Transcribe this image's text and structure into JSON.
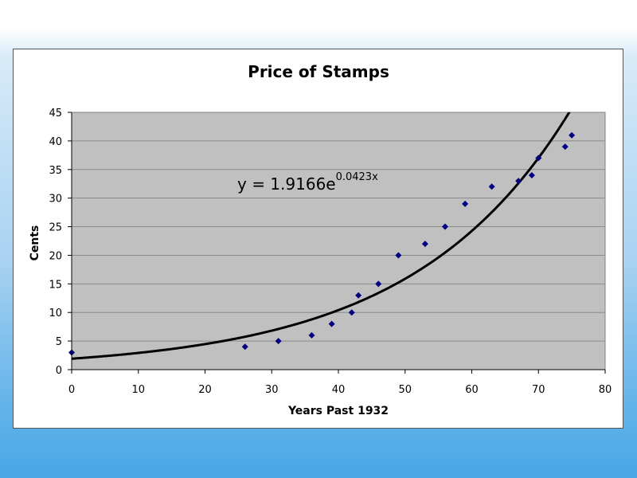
{
  "chart_data": {
    "type": "scatter",
    "title": "Price of Stamps",
    "xlabel": "Years Past 1932",
    "ylabel": "Cents",
    "xlim": [
      0,
      80
    ],
    "ylim": [
      0,
      45
    ],
    "x_ticks": [
      "0",
      "10",
      "20",
      "30",
      "40",
      "50",
      "60",
      "70",
      "80"
    ],
    "y_ticks": [
      "0",
      "5",
      "10",
      "15",
      "20",
      "25",
      "30",
      "35",
      "40",
      "45"
    ],
    "grid": true,
    "plot_background": "#c0c0c0",
    "marker_color": "#000080",
    "trendline": {
      "type": "exponential",
      "a": 1.9166,
      "b": 0.0423,
      "equation_base": "y = 1.9166e",
      "equation_exponent": "0.0423x",
      "color": "#000000"
    },
    "points": [
      {
        "x": 0,
        "y": 3
      },
      {
        "x": 26,
        "y": 4
      },
      {
        "x": 31,
        "y": 5
      },
      {
        "x": 36,
        "y": 6
      },
      {
        "x": 39,
        "y": 8
      },
      {
        "x": 42,
        "y": 10
      },
      {
        "x": 43,
        "y": 13
      },
      {
        "x": 46,
        "y": 15
      },
      {
        "x": 49,
        "y": 20
      },
      {
        "x": 53,
        "y": 22
      },
      {
        "x": 56,
        "y": 25
      },
      {
        "x": 59,
        "y": 29
      },
      {
        "x": 63,
        "y": 32
      },
      {
        "x": 67,
        "y": 33
      },
      {
        "x": 69,
        "y": 34
      },
      {
        "x": 70,
        "y": 37
      },
      {
        "x": 74,
        "y": 39
      },
      {
        "x": 75,
        "y": 41
      }
    ]
  }
}
